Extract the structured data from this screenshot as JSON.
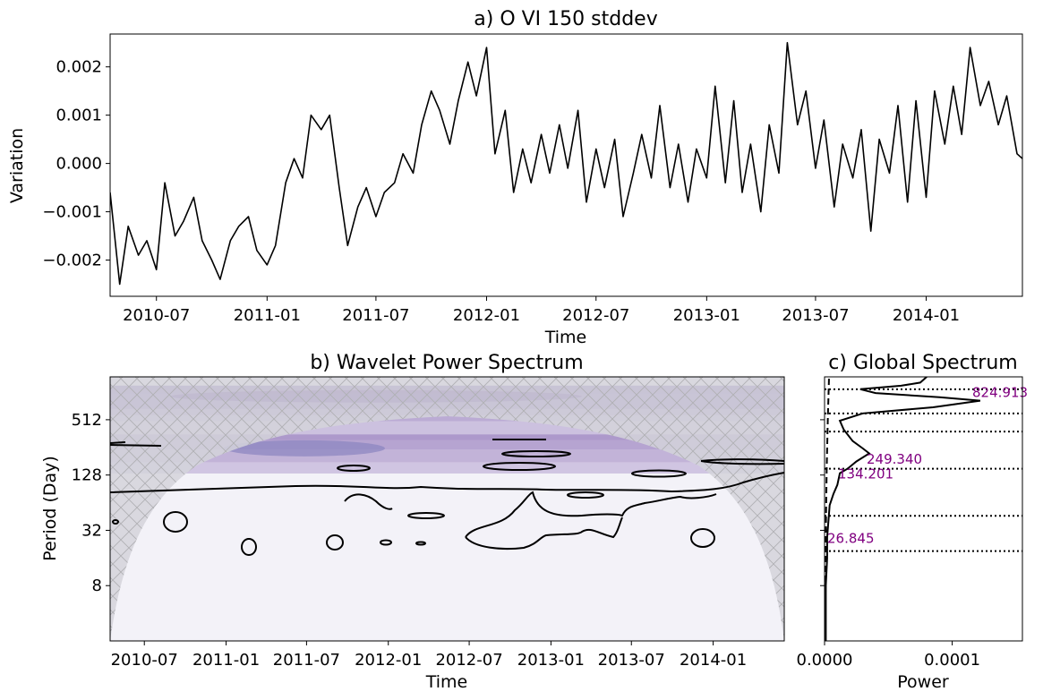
{
  "chart_data": [
    {
      "type": "line",
      "title": "a) O VI 150 stddev",
      "xlabel": "Time",
      "ylabel": "Variation",
      "xlim": [
        "2010-04-15",
        "2014-06-10"
      ],
      "ylim": [
        -0.00275,
        0.00268
      ],
      "x_ticks": [
        "2010-07",
        "2011-01",
        "2011-07",
        "2012-01",
        "2012-07",
        "2013-01",
        "2013-07",
        "2014-01"
      ],
      "y_ticks": [
        -0.002,
        -0.001,
        0.0,
        0.001,
        0.002
      ],
      "y_tick_labels": [
        "−0.002",
        "−0.001",
        "0.000",
        "0.001",
        "0.002"
      ],
      "line_color": "#000000",
      "series": [
        {
          "x": [
            "2010-04-15",
            "2010-05-01",
            "2010-05-15",
            "2010-06-01",
            "2010-06-15",
            "2010-07-01",
            "2010-07-15",
            "2010-08-01",
            "2010-08-15",
            "2010-09-01",
            "2010-09-15",
            "2010-10-01",
            "2010-10-15",
            "2010-11-01",
            "2010-11-15",
            "2010-12-01",
            "2010-12-15",
            "2011-01-01",
            "2011-01-15",
            "2011-02-01",
            "2011-02-15",
            "2011-03-01",
            "2011-03-15",
            "2011-04-01",
            "2011-04-15",
            "2011-05-01",
            "2011-05-15",
            "2011-06-01",
            "2011-06-15",
            "2011-07-01",
            "2011-07-15",
            "2011-08-01",
            "2011-08-15",
            "2011-09-01",
            "2011-09-15",
            "2011-10-01",
            "2011-10-15",
            "2011-11-01",
            "2011-11-15",
            "2011-12-01",
            "2011-12-15",
            "2012-01-01",
            "2012-01-15",
            "2012-02-01",
            "2012-02-15",
            "2012-03-01",
            "2012-03-15",
            "2012-04-01",
            "2012-04-15",
            "2012-05-01",
            "2012-05-15",
            "2012-06-01",
            "2012-06-15",
            "2012-07-01",
            "2012-07-15",
            "2012-08-01",
            "2012-08-15",
            "2012-09-01",
            "2012-09-15",
            "2012-10-01",
            "2012-10-15",
            "2012-11-01",
            "2012-11-15",
            "2012-12-01",
            "2012-12-15",
            "2013-01-01",
            "2013-01-15",
            "2013-02-01",
            "2013-02-15",
            "2013-03-01",
            "2013-03-15",
            "2013-04-01",
            "2013-04-15",
            "2013-05-01",
            "2013-05-15",
            "2013-06-01",
            "2013-06-15",
            "2013-07-01",
            "2013-07-15",
            "2013-08-01",
            "2013-08-15",
            "2013-09-01",
            "2013-09-15",
            "2013-10-01",
            "2013-10-15",
            "2013-11-01",
            "2013-11-15",
            "2013-12-01",
            "2013-12-15",
            "2014-01-01",
            "2014-01-15",
            "2014-02-01",
            "2014-02-15",
            "2014-03-01",
            "2014-03-15",
            "2014-04-01",
            "2014-04-15",
            "2014-05-01",
            "2014-05-15",
            "2014-06-01",
            "2014-06-10"
          ],
          "y": [
            -0.0006,
            -0.0025,
            -0.0013,
            -0.0019,
            -0.0016,
            -0.0022,
            -0.0004,
            -0.0015,
            -0.0012,
            -0.0007,
            -0.0016,
            -0.002,
            -0.0024,
            -0.0016,
            -0.0013,
            -0.0011,
            -0.0018,
            -0.0021,
            -0.0017,
            -0.0004,
            0.0001,
            -0.0003,
            0.001,
            0.0007,
            0.001,
            -0.0005,
            -0.0017,
            -0.0009,
            -0.0005,
            -0.0011,
            -0.0006,
            -0.0004,
            0.0002,
            -0.0002,
            0.0008,
            0.0015,
            0.0011,
            0.0004,
            0.0013,
            0.0021,
            0.0014,
            0.0024,
            0.0002,
            0.0011,
            -0.0006,
            0.0003,
            -0.0004,
            0.0006,
            -0.0002,
            0.0008,
            -0.0001,
            0.0011,
            -0.0008,
            0.0003,
            -0.0005,
            0.0005,
            -0.0011,
            -0.0002,
            0.0006,
            -0.0003,
            0.0012,
            -0.0005,
            0.0004,
            -0.0008,
            0.0003,
            -0.0003,
            0.0016,
            -0.0004,
            0.0013,
            -0.0006,
            0.0004,
            -0.001,
            0.0008,
            -0.0002,
            0.0025,
            0.0008,
            0.0015,
            -0.0001,
            0.0009,
            -0.0009,
            0.0004,
            -0.0003,
            0.0007,
            -0.0014,
            0.0005,
            -0.0002,
            0.0012,
            -0.0008,
            0.0013,
            -0.0007,
            0.0015,
            0.0004,
            0.0016,
            0.0006,
            0.0024,
            0.0012,
            0.0017,
            0.0008,
            0.0014,
            0.0002,
            0.0001
          ]
        }
      ]
    },
    {
      "type": "heatmap",
      "title": "b) Wavelet Power Spectrum",
      "xlabel": "Time",
      "ylabel": "Period (Day)",
      "y_scale": "log2",
      "ylim": [
        2,
        1500
      ],
      "xlim": [
        "2010-04-15",
        "2014-06-10"
      ],
      "x_ticks": [
        "2010-07",
        "2011-01",
        "2011-07",
        "2012-01",
        "2012-07",
        "2013-01",
        "2013-07",
        "2014-01"
      ],
      "y_ticks": [
        8,
        32,
        128,
        512
      ],
      "colormap": "Purples",
      "cone_of_influence": "hatched",
      "power_bands": [
        {
          "period": 900,
          "level": 0.8
        },
        {
          "period": 700,
          "level": 0.55
        },
        {
          "period": 420,
          "level": 0.28
        },
        {
          "period": 250,
          "level": 0.45
        },
        {
          "period": 180,
          "level": 0.25
        }
      ]
    },
    {
      "type": "line",
      "title": "c) Global Spectrum",
      "xlabel": "Power",
      "y_scale": "log2",
      "ylim": [
        2,
        1500
      ],
      "xlim": [
        0,
        0.000155
      ],
      "x_ticks": [
        0,
        0.0001
      ],
      "x_tick_labels": [
        "0.0000",
        "0.0001"
      ],
      "series": [
        {
          "name": "global power",
          "period": [
            2,
            8,
            16,
            26.8,
            40,
            60,
            80,
            100,
            134,
            150,
            180,
            220,
            249,
            300,
            400,
            500,
            600,
            700,
            825,
            900,
            1000,
            1100,
            1200,
            1300,
            1500
          ],
          "power": [
            1e-06,
            1e-06,
            2e-06,
            2e-06,
            3e-06,
            4e-06,
            7e-06,
            1e-05,
            1.2e-05,
            1.8e-05,
            2.5e-05,
            3.5e-05,
            3e-05,
            2.2e-05,
            1.5e-05,
            1.2e-05,
            3e-05,
            8.5e-05,
            0.000122,
            9e-05,
            4e-05,
            2.8e-05,
            6e-05,
            7.5e-05,
            8e-05
          ]
        }
      ],
      "significance": {
        "period": [
          2,
          10,
          50,
          150,
          500,
          1500
        ],
        "power": [
          5e-07,
          8e-07,
          1.2e-06,
          1.7e-06,
          2.5e-06,
          3.5e-06
        ]
      },
      "peaks": [
        {
          "period": 824.913,
          "label": "824.913",
          "lower": 600,
          "upper": 1100
        },
        {
          "period": 249.34,
          "label": "249.340",
          "lower": 150,
          "upper": 380
        },
        {
          "period": 134.201,
          "label": "134.201"
        },
        {
          "period": 26.845,
          "label": "26.845",
          "lower": 19,
          "upper": 46
        }
      ],
      "annotation_color": "#800080"
    }
  ]
}
